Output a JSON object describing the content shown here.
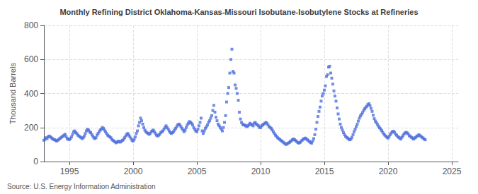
{
  "chart_data": {
    "type": "scatter",
    "title": "Monthly Refining District Oklahoma-Kansas-Missouri Isobutane-Isobutylene Stocks at Refineries",
    "ylabel": "Thousand Barrels",
    "source": "Source: U.S. Energy Information Administration",
    "marker": "square",
    "grid": true,
    "xlim": [
      1993.0,
      2025.5
    ],
    "ylim": [
      0,
      800
    ],
    "xticks": [
      1995,
      2000,
      2005,
      2010,
      2015,
      2020,
      2025
    ],
    "yticks": [
      0,
      200,
      400,
      600,
      800
    ],
    "x": [
      1993.0,
      1993.083,
      1993.167,
      1993.25,
      1993.333,
      1993.417,
      1993.5,
      1993.583,
      1993.667,
      1993.75,
      1993.833,
      1993.917,
      1994.0,
      1994.083,
      1994.167,
      1994.25,
      1994.333,
      1994.417,
      1994.5,
      1994.583,
      1994.667,
      1994.75,
      1994.833,
      1994.917,
      1995.0,
      1995.083,
      1995.167,
      1995.25,
      1995.333,
      1995.417,
      1995.5,
      1995.583,
      1995.667,
      1995.75,
      1995.833,
      1995.917,
      1996.0,
      1996.083,
      1996.167,
      1996.25,
      1996.333,
      1996.417,
      1996.5,
      1996.583,
      1996.667,
      1996.75,
      1996.833,
      1996.917,
      1997.0,
      1997.083,
      1997.167,
      1997.25,
      1997.333,
      1997.417,
      1997.5,
      1997.583,
      1997.667,
      1997.75,
      1997.833,
      1997.917,
      1998.0,
      1998.083,
      1998.167,
      1998.25,
      1998.333,
      1998.417,
      1998.5,
      1998.583,
      1998.667,
      1998.75,
      1998.833,
      1998.917,
      1999.0,
      1999.083,
      1999.167,
      1999.25,
      1999.333,
      1999.417,
      1999.5,
      1999.583,
      1999.667,
      1999.75,
      1999.833,
      1999.917,
      2000.0,
      2000.083,
      2000.167,
      2000.25,
      2000.333,
      2000.417,
      2000.5,
      2000.583,
      2000.667,
      2000.75,
      2000.833,
      2000.917,
      2001.0,
      2001.083,
      2001.167,
      2001.25,
      2001.333,
      2001.417,
      2001.5,
      2001.583,
      2001.667,
      2001.75,
      2001.833,
      2001.917,
      2002.0,
      2002.083,
      2002.167,
      2002.25,
      2002.333,
      2002.417,
      2002.5,
      2002.583,
      2002.667,
      2002.75,
      2002.833,
      2002.917,
      2003.0,
      2003.083,
      2003.167,
      2003.25,
      2003.333,
      2003.417,
      2003.5,
      2003.583,
      2003.667,
      2003.75,
      2003.833,
      2003.917,
      2004.0,
      2004.083,
      2004.167,
      2004.25,
      2004.333,
      2004.417,
      2004.5,
      2004.583,
      2004.667,
      2004.75,
      2004.833,
      2004.917,
      2005.0,
      2005.083,
      2005.167,
      2005.25,
      2005.333,
      2005.417,
      2005.5,
      2005.583,
      2005.667,
      2005.75,
      2005.833,
      2005.917,
      2006.0,
      2006.083,
      2006.167,
      2006.25,
      2006.333,
      2006.417,
      2006.5,
      2006.583,
      2006.667,
      2006.75,
      2006.833,
      2006.917,
      2007.0,
      2007.083,
      2007.167,
      2007.25,
      2007.333,
      2007.417,
      2007.5,
      2007.583,
      2007.667,
      2007.75,
      2007.833,
      2007.917,
      2008.0,
      2008.083,
      2008.167,
      2008.25,
      2008.333,
      2008.417,
      2008.5,
      2008.583,
      2008.667,
      2008.75,
      2008.833,
      2008.917,
      2009.0,
      2009.083,
      2009.167,
      2009.25,
      2009.333,
      2009.417,
      2009.5,
      2009.583,
      2009.667,
      2009.75,
      2009.833,
      2009.917,
      2010.0,
      2010.083,
      2010.167,
      2010.25,
      2010.333,
      2010.417,
      2010.5,
      2010.583,
      2010.667,
      2010.75,
      2010.833,
      2010.917,
      2011.0,
      2011.083,
      2011.167,
      2011.25,
      2011.333,
      2011.417,
      2011.5,
      2011.583,
      2011.667,
      2011.75,
      2011.833,
      2011.917,
      2012.0,
      2012.083,
      2012.167,
      2012.25,
      2012.333,
      2012.417,
      2012.5,
      2012.583,
      2012.667,
      2012.75,
      2012.833,
      2012.917,
      2013.0,
      2013.083,
      2013.167,
      2013.25,
      2013.333,
      2013.417,
      2013.5,
      2013.583,
      2013.667,
      2013.75,
      2013.833,
      2013.917,
      2014.0,
      2014.083,
      2014.167,
      2014.25,
      2014.333,
      2014.417,
      2014.5,
      2014.583,
      2014.667,
      2014.75,
      2014.833,
      2014.917,
      2015.0,
      2015.083,
      2015.167,
      2015.25,
      2015.333,
      2015.417,
      2015.5,
      2015.583,
      2015.667,
      2015.75,
      2015.833,
      2015.917,
      2016.0,
      2016.083,
      2016.167,
      2016.25,
      2016.333,
      2016.417,
      2016.5,
      2016.583,
      2016.667,
      2016.75,
      2016.833,
      2016.917,
      2017.0,
      2017.083,
      2017.167,
      2017.25,
      2017.333,
      2017.417,
      2017.5,
      2017.583,
      2017.667,
      2017.75,
      2017.833,
      2017.917,
      2018.0,
      2018.083,
      2018.167,
      2018.25,
      2018.333,
      2018.417,
      2018.5,
      2018.583,
      2018.667,
      2018.75,
      2018.833,
      2018.917,
      2019.0,
      2019.083,
      2019.167,
      2019.25,
      2019.333,
      2019.417,
      2019.5,
      2019.583,
      2019.667,
      2019.75,
      2019.833,
      2019.917,
      2020.0,
      2020.083,
      2020.167,
      2020.25,
      2020.333,
      2020.417,
      2020.5,
      2020.583,
      2020.667,
      2020.75,
      2020.833,
      2020.917,
      2021.0,
      2021.083,
      2021.167,
      2021.25,
      2021.333,
      2021.417,
      2021.5,
      2021.583,
      2021.667,
      2021.75,
      2021.833,
      2021.917,
      2022.0,
      2022.083,
      2022.167,
      2022.25,
      2022.333,
      2022.417,
      2022.5,
      2022.583,
      2022.667,
      2022.75,
      2022.833,
      2022.917
    ],
    "values": [
      125,
      130,
      140,
      135,
      145,
      150,
      145,
      140,
      135,
      130,
      128,
      125,
      120,
      125,
      130,
      135,
      140,
      145,
      150,
      155,
      160,
      145,
      135,
      130,
      130,
      135,
      145,
      160,
      175,
      180,
      170,
      165,
      155,
      150,
      145,
      140,
      135,
      140,
      150,
      165,
      180,
      190,
      185,
      175,
      170,
      160,
      150,
      140,
      135,
      140,
      155,
      165,
      175,
      185,
      190,
      200,
      195,
      185,
      175,
      165,
      155,
      150,
      145,
      140,
      130,
      125,
      120,
      115,
      110,
      115,
      120,
      115,
      115,
      120,
      125,
      130,
      140,
      150,
      160,
      165,
      155,
      145,
      135,
      125,
      120,
      130,
      145,
      165,
      180,
      210,
      230,
      255,
      240,
      220,
      200,
      185,
      175,
      170,
      165,
      160,
      165,
      175,
      180,
      185,
      175,
      165,
      155,
      150,
      155,
      160,
      170,
      175,
      180,
      190,
      200,
      210,
      200,
      190,
      180,
      170,
      165,
      170,
      175,
      185,
      195,
      205,
      215,
      220,
      215,
      205,
      195,
      185,
      175,
      185,
      200,
      215,
      225,
      235,
      230,
      225,
      215,
      200,
      190,
      180,
      175,
      190,
      210,
      230,
      255,
      180,
      165,
      180,
      195,
      205,
      215,
      230,
      240,
      255,
      270,
      300,
      330,
      290,
      260,
      240,
      220,
      210,
      200,
      190,
      180,
      200,
      230,
      270,
      350,
      400,
      435,
      520,
      600,
      660,
      530,
      520,
      450,
      430,
      400,
      360,
      290,
      250,
      230,
      220,
      215,
      215,
      210,
      205,
      210,
      215,
      225,
      220,
      215,
      210,
      225,
      230,
      220,
      215,
      210,
      200,
      200,
      210,
      215,
      220,
      225,
      230,
      225,
      215,
      205,
      200,
      195,
      185,
      175,
      165,
      155,
      148,
      140,
      135,
      130,
      125,
      120,
      115,
      110,
      105,
      100,
      105,
      108,
      112,
      118,
      122,
      128,
      133,
      128,
      123,
      118,
      112,
      108,
      112,
      118,
      125,
      130,
      135,
      138,
      133,
      128,
      122,
      118,
      112,
      108,
      120,
      135,
      158,
      190,
      230,
      265,
      295,
      320,
      355,
      385,
      400,
      420,
      445,
      500,
      510,
      555,
      560,
      520,
      490,
      455,
      415,
      385,
      355,
      315,
      280,
      250,
      220,
      200,
      185,
      170,
      158,
      148,
      142,
      138,
      132,
      128,
      132,
      142,
      158,
      175,
      190,
      205,
      220,
      238,
      255,
      268,
      278,
      288,
      300,
      310,
      318,
      325,
      335,
      340,
      328,
      312,
      295,
      272,
      252,
      238,
      228,
      218,
      208,
      198,
      192,
      182,
      172,
      162,
      155,
      148,
      142,
      138,
      148,
      158,
      168,
      175,
      178,
      172,
      162,
      155,
      148,
      142,
      138,
      132,
      142,
      152,
      162,
      168,
      172,
      168,
      162,
      152,
      148,
      142,
      138,
      132,
      138,
      142,
      148,
      152,
      158,
      152,
      148,
      142,
      138,
      132,
      128
    ]
  }
}
